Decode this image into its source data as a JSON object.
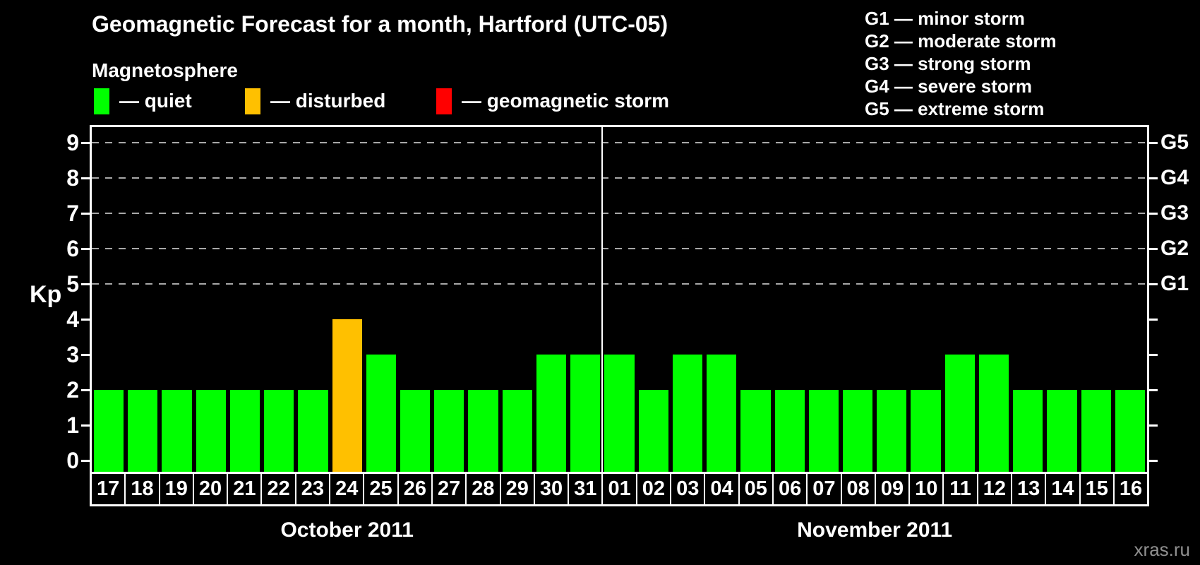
{
  "header": {
    "title": "Geomagnetic Forecast for a month, Hartford (UTC-05)",
    "legend_title": "Magnetosphere",
    "legend": [
      {
        "name": "quiet",
        "label": "— quiet",
        "color": "#00ff00"
      },
      {
        "name": "disturbed",
        "label": "— disturbed",
        "color": "#ffc000"
      },
      {
        "name": "storm",
        "label": "— geomagnetic storm",
        "color": "#ff0000"
      }
    ],
    "g_legend": [
      "G1 — minor storm",
      "G2 — moderate storm",
      "G3 — strong storm",
      "G4 — severe storm",
      "G5 — extreme storm"
    ]
  },
  "watermark": "xras.ru",
  "chart_data": {
    "type": "bar",
    "title": "Geomagnetic Forecast for a month, Hartford (UTC-05)",
    "ylabel": "Kp",
    "ylim": [
      0,
      9
    ],
    "yticks": [
      0,
      1,
      2,
      3,
      4,
      5,
      6,
      7,
      8,
      9
    ],
    "grid_kp_levels": [
      5,
      6,
      7,
      8,
      9
    ],
    "right_axis_labels": [
      {
        "label": "G1",
        "kp": 5
      },
      {
        "label": "G2",
        "kp": 6
      },
      {
        "label": "G3",
        "kp": 7
      },
      {
        "label": "G4",
        "kp": 8
      },
      {
        "label": "G5",
        "kp": 9
      }
    ],
    "colors": {
      "quiet": "#00ff00",
      "disturbed": "#ffc000",
      "storm": "#ff0000"
    },
    "color_rules": {
      "quiet_kp_max": 3,
      "disturbed_kp_max": 5
    },
    "grid_color": "#a8a8a8",
    "legend_position": "top",
    "months": [
      {
        "name": "October 2011",
        "days": [
          {
            "day": "17",
            "kp": 2
          },
          {
            "day": "18",
            "kp": 2
          },
          {
            "day": "19",
            "kp": 2
          },
          {
            "day": "20",
            "kp": 2
          },
          {
            "day": "21",
            "kp": 2
          },
          {
            "day": "22",
            "kp": 2
          },
          {
            "day": "23",
            "kp": 2
          },
          {
            "day": "24",
            "kp": 4
          },
          {
            "day": "25",
            "kp": 3
          },
          {
            "day": "26",
            "kp": 2
          },
          {
            "day": "27",
            "kp": 2
          },
          {
            "day": "28",
            "kp": 2
          },
          {
            "day": "29",
            "kp": 2
          },
          {
            "day": "30",
            "kp": 3
          },
          {
            "day": "31",
            "kp": 3
          }
        ]
      },
      {
        "name": "November 2011",
        "days": [
          {
            "day": "01",
            "kp": 3
          },
          {
            "day": "02",
            "kp": 2
          },
          {
            "day": "03",
            "kp": 3
          },
          {
            "day": "04",
            "kp": 3
          },
          {
            "day": "05",
            "kp": 2
          },
          {
            "day": "06",
            "kp": 2
          },
          {
            "day": "07",
            "kp": 2
          },
          {
            "day": "08",
            "kp": 2
          },
          {
            "day": "09",
            "kp": 2
          },
          {
            "day": "10",
            "kp": 2
          },
          {
            "day": "11",
            "kp": 3
          },
          {
            "day": "12",
            "kp": 3
          },
          {
            "day": "13",
            "kp": 2
          },
          {
            "day": "14",
            "kp": 2
          },
          {
            "day": "15",
            "kp": 2
          },
          {
            "day": "16",
            "kp": 2
          }
        ]
      }
    ]
  }
}
